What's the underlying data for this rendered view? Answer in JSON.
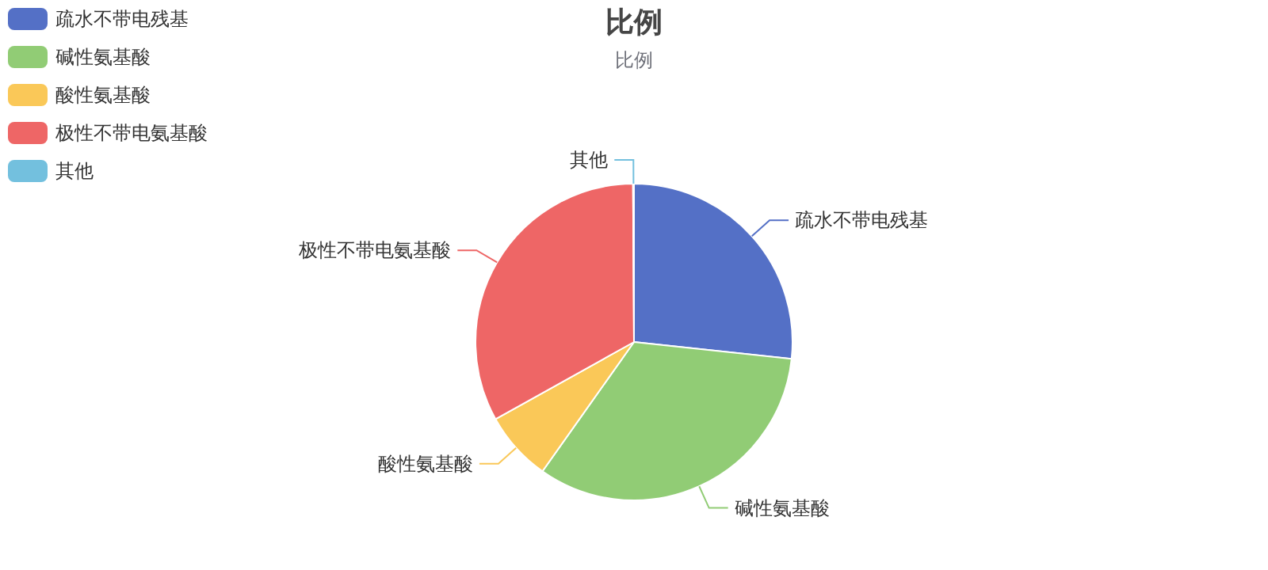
{
  "chart_data": {
    "type": "pie",
    "title": "比例",
    "subtitle": "比例",
    "legend": "top left",
    "categories": [
      "疏水不带电残基",
      "碱性氨基酸",
      "酸性氨基酸",
      "极性不带电氨基酸",
      "其他"
    ],
    "values": [
      26.7,
      33.1,
      7.1,
      33.0,
      0.1
    ],
    "colors": [
      "#5470c6",
      "#91cc75",
      "#fac858",
      "#ee6666",
      "#73c0de"
    ]
  }
}
